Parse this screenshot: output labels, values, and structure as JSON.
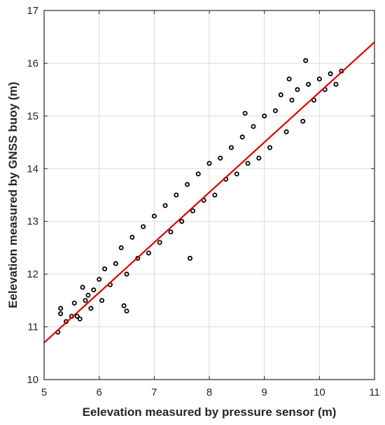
{
  "chart_data": {
    "type": "scatter",
    "title": "",
    "xlabel": "Eelevation measured by pressure sensor (m)",
    "ylabel": "Eelevation measured by GNSS buoy (m)",
    "xlim": [
      5,
      11
    ],
    "ylim": [
      10,
      17
    ],
    "xticks": [
      "5",
      "6",
      "7",
      "8",
      "9",
      "10",
      "11"
    ],
    "yticks": [
      "10",
      "11",
      "12",
      "13",
      "14",
      "15",
      "16",
      "17"
    ],
    "grid": true,
    "legend": "none",
    "colors": {
      "points": "#000000",
      "fit_line": "#e00000",
      "grid": "#d9d9d9",
      "axes": "#262626"
    },
    "scatter_series": {
      "marker": "open-circle",
      "trend": {
        "slope": 0.95,
        "intercept": 5.95
      },
      "representative_points": [
        [
          5.25,
          10.9
        ],
        [
          5.3,
          11.25
        ],
        [
          5.3,
          11.35
        ],
        [
          5.4,
          11.1
        ],
        [
          5.5,
          11.2
        ],
        [
          5.55,
          11.45
        ],
        [
          5.6,
          11.2
        ],
        [
          5.65,
          11.15
        ],
        [
          5.7,
          11.75
        ],
        [
          5.75,
          11.5
        ],
        [
          5.8,
          11.6
        ],
        [
          5.85,
          11.35
        ],
        [
          5.9,
          11.7
        ],
        [
          6.0,
          11.9
        ],
        [
          6.05,
          11.5
        ],
        [
          6.1,
          12.1
        ],
        [
          6.2,
          11.8
        ],
        [
          6.3,
          12.2
        ],
        [
          6.4,
          12.5
        ],
        [
          6.45,
          11.4
        ],
        [
          6.5,
          11.3
        ],
        [
          6.5,
          12.0
        ],
        [
          6.6,
          12.7
        ],
        [
          6.7,
          12.3
        ],
        [
          6.8,
          12.9
        ],
        [
          6.9,
          12.4
        ],
        [
          7.0,
          13.1
        ],
        [
          7.1,
          12.6
        ],
        [
          7.2,
          13.3
        ],
        [
          7.3,
          12.8
        ],
        [
          7.4,
          13.5
        ],
        [
          7.5,
          13.0
        ],
        [
          7.6,
          13.7
        ],
        [
          7.65,
          12.3
        ],
        [
          7.7,
          13.2
        ],
        [
          7.8,
          13.9
        ],
        [
          7.9,
          13.4
        ],
        [
          8.0,
          14.1
        ],
        [
          8.1,
          13.5
        ],
        [
          8.2,
          14.2
        ],
        [
          8.3,
          13.8
        ],
        [
          8.4,
          14.4
        ],
        [
          8.5,
          13.9
        ],
        [
          8.6,
          14.6
        ],
        [
          8.65,
          15.05
        ],
        [
          8.7,
          14.1
        ],
        [
          8.8,
          14.8
        ],
        [
          8.9,
          14.2
        ],
        [
          9.0,
          15.0
        ],
        [
          9.1,
          14.4
        ],
        [
          9.2,
          15.1
        ],
        [
          9.3,
          15.4
        ],
        [
          9.4,
          14.7
        ],
        [
          9.45,
          15.7
        ],
        [
          9.5,
          15.3
        ],
        [
          9.6,
          15.5
        ],
        [
          9.7,
          14.9
        ],
        [
          9.75,
          16.05
        ],
        [
          9.8,
          15.6
        ],
        [
          9.9,
          15.3
        ],
        [
          10.0,
          15.7
        ],
        [
          10.1,
          15.5
        ],
        [
          10.2,
          15.8
        ],
        [
          10.3,
          15.6
        ],
        [
          10.4,
          15.85
        ]
      ]
    }
  }
}
